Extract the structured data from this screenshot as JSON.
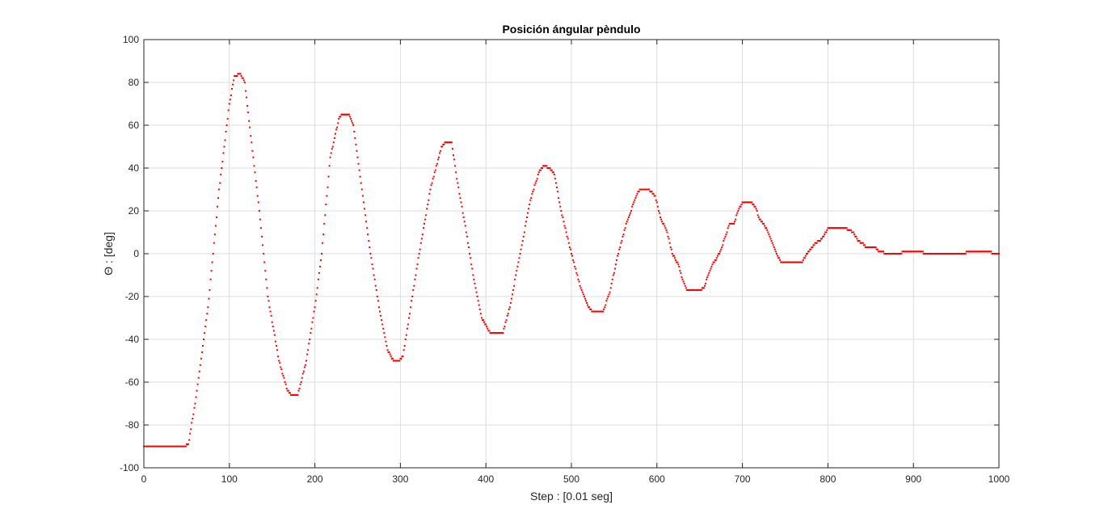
{
  "chart_data": {
    "type": "scatter",
    "title": "Posición ángular pèndulo",
    "xlabel": "Step : [0.01 seg]",
    "ylabel": "Θ : [deg]",
    "xlim": [
      0,
      1000
    ],
    "ylim": [
      -100,
      100
    ],
    "xticks": [
      0,
      100,
      200,
      300,
      400,
      500,
      600,
      700,
      800,
      900,
      1000
    ],
    "yticks": [
      -100,
      -80,
      -60,
      -40,
      -20,
      0,
      20,
      40,
      60,
      80,
      100
    ],
    "grid": true,
    "marker_color": "#ff0000",
    "keypoints": [
      [
        0,
        -90
      ],
      [
        47,
        -90
      ],
      [
        52,
        -89
      ],
      [
        60,
        -70
      ],
      [
        75,
        -25
      ],
      [
        88,
        30
      ],
      [
        100,
        70
      ],
      [
        106,
        83
      ],
      [
        113,
        84
      ],
      [
        118,
        80
      ],
      [
        125,
        55
      ],
      [
        135,
        20
      ],
      [
        145,
        -20
      ],
      [
        158,
        -50
      ],
      [
        168,
        -64
      ],
      [
        173,
        -66
      ],
      [
        180,
        -66
      ],
      [
        190,
        -50
      ],
      [
        200,
        -25
      ],
      [
        208,
        0
      ],
      [
        218,
        45
      ],
      [
        228,
        63
      ],
      [
        232,
        65
      ],
      [
        240,
        65
      ],
      [
        245,
        60
      ],
      [
        255,
        30
      ],
      [
        265,
        0
      ],
      [
        275,
        -25
      ],
      [
        285,
        -45
      ],
      [
        292,
        -50
      ],
      [
        298,
        -50
      ],
      [
        303,
        -48
      ],
      [
        312,
        -25
      ],
      [
        322,
        0
      ],
      [
        335,
        30
      ],
      [
        348,
        50
      ],
      [
        353,
        52
      ],
      [
        360,
        52
      ],
      [
        366,
        35
      ],
      [
        375,
        15
      ],
      [
        385,
        -10
      ],
      [
        395,
        -30
      ],
      [
        405,
        -37
      ],
      [
        420,
        -37
      ],
      [
        428,
        -25
      ],
      [
        440,
        0
      ],
      [
        452,
        25
      ],
      [
        462,
        38
      ],
      [
        467,
        41
      ],
      [
        475,
        40
      ],
      [
        480,
        37
      ],
      [
        488,
        20
      ],
      [
        500,
        0
      ],
      [
        510,
        -15
      ],
      [
        520,
        -25
      ],
      [
        525,
        -27
      ],
      [
        537,
        -27
      ],
      [
        545,
        -18
      ],
      [
        553,
        -3
      ],
      [
        565,
        15
      ],
      [
        577,
        28
      ],
      [
        580,
        30
      ],
      [
        590,
        30
      ],
      [
        598,
        27
      ],
      [
        604,
        17
      ],
      [
        612,
        10
      ],
      [
        618,
        0
      ],
      [
        625,
        -5
      ],
      [
        630,
        -12
      ],
      [
        635,
        -17
      ],
      [
        650,
        -17
      ],
      [
        655,
        -16
      ],
      [
        660,
        -10
      ],
      [
        665,
        -5
      ],
      [
        670,
        -2
      ],
      [
        675,
        2
      ],
      [
        680,
        8
      ],
      [
        685,
        14
      ],
      [
        690,
        14
      ],
      [
        695,
        20
      ],
      [
        700,
        24
      ],
      [
        710,
        24
      ],
      [
        715,
        22
      ],
      [
        720,
        16
      ],
      [
        725,
        14
      ],
      [
        730,
        10
      ],
      [
        735,
        5
      ],
      [
        740,
        0
      ],
      [
        745,
        -4
      ],
      [
        770,
        -4
      ],
      [
        775,
        0
      ],
      [
        780,
        2
      ],
      [
        785,
        5
      ],
      [
        790,
        6
      ],
      [
        795,
        8
      ],
      [
        800,
        12
      ],
      [
        820,
        12
      ],
      [
        830,
        10
      ],
      [
        835,
        6
      ],
      [
        840,
        5
      ],
      [
        845,
        3
      ],
      [
        855,
        3
      ],
      [
        860,
        1
      ],
      [
        870,
        0
      ],
      [
        885,
        0
      ],
      [
        888,
        1
      ],
      [
        910,
        1
      ],
      [
        913,
        0
      ],
      [
        960,
        0
      ],
      [
        963,
        1
      ],
      [
        990,
        1
      ],
      [
        993,
        0
      ],
      [
        1000,
        0
      ]
    ],
    "quantization_deg": 1.0
  }
}
